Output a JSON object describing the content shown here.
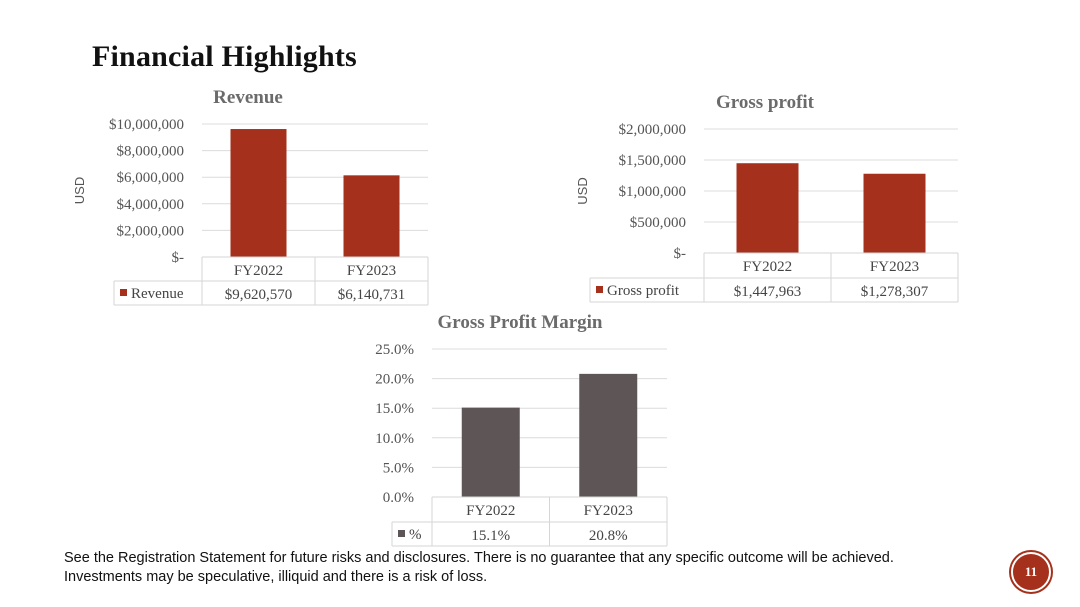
{
  "slide": {
    "title": "Financial Highlights",
    "footnote": "See the Registration Statement for future risks and disclosures. There is no guarantee that any specific outcome will be achieved. Investments may be speculative, illiquid and there is a risk of loss.",
    "page_number": "11"
  },
  "colors": {
    "revenue": "#a5301b",
    "gross_profit": "#a5301b",
    "margin": "#5e5656",
    "accent": "#a5301b"
  },
  "chart_data": [
    {
      "type": "bar",
      "title": "Revenue",
      "ylabel": "USD",
      "categories": [
        "FY2022",
        "FY2023"
      ],
      "series": [
        {
          "name": "Revenue",
          "values": [
            9620570,
            6140731
          ]
        }
      ],
      "data_labels": [
        "$9,620,570",
        "$6,140,731"
      ],
      "ylim": [
        0,
        10000000
      ],
      "yticks": [
        "$-",
        "$2,000,000",
        "$4,000,000",
        "$6,000,000",
        "$8,000,000",
        "$10,000,000"
      ],
      "grid": true,
      "legend": "data-table"
    },
    {
      "type": "bar",
      "title": "Gross profit",
      "ylabel": "USD",
      "categories": [
        "FY2022",
        "FY2023"
      ],
      "series": [
        {
          "name": "Gross profit",
          "values": [
            1447963,
            1278307
          ]
        }
      ],
      "data_labels": [
        "$1,447,963",
        "$1,278,307"
      ],
      "ylim": [
        0,
        2000000
      ],
      "yticks": [
        "$-",
        "$500,000",
        "$1,000,000",
        "$1,500,000",
        "$2,000,000"
      ],
      "grid": true,
      "legend": "data-table"
    },
    {
      "type": "bar",
      "title": "Gross Profit Margin",
      "ylabel": "",
      "categories": [
        "FY2022",
        "FY2023"
      ],
      "series": [
        {
          "name": "%",
          "values": [
            15.1,
            20.8
          ]
        }
      ],
      "data_labels": [
        "15.1%",
        "20.8%"
      ],
      "ylim": [
        0,
        25
      ],
      "yticks": [
        "0.0%",
        "5.0%",
        "10.0%",
        "15.0%",
        "20.0%",
        "25.0%"
      ],
      "grid": true,
      "legend": "data-table"
    }
  ]
}
